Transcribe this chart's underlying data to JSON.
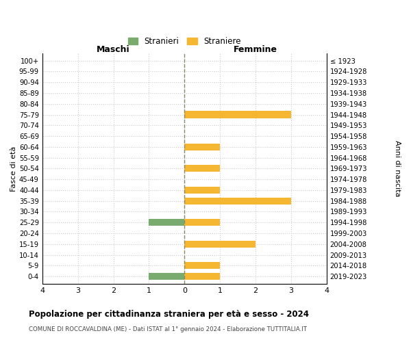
{
  "age_groups": [
    "100+",
    "95-99",
    "90-94",
    "85-89",
    "80-84",
    "75-79",
    "70-74",
    "65-69",
    "60-64",
    "55-59",
    "50-54",
    "45-49",
    "40-44",
    "35-39",
    "30-34",
    "25-29",
    "20-24",
    "15-19",
    "10-14",
    "5-9",
    "0-4"
  ],
  "birth_years": [
    "≤ 1923",
    "1924-1928",
    "1929-1933",
    "1934-1938",
    "1939-1943",
    "1944-1948",
    "1949-1953",
    "1954-1958",
    "1959-1963",
    "1964-1968",
    "1969-1973",
    "1974-1978",
    "1979-1983",
    "1984-1988",
    "1989-1993",
    "1994-1998",
    "1999-2003",
    "2004-2008",
    "2009-2013",
    "2014-2018",
    "2019-2023"
  ],
  "males": [
    0,
    0,
    0,
    0,
    0,
    0,
    0,
    0,
    0,
    0,
    0,
    0,
    0,
    0,
    0,
    1,
    0,
    0,
    0,
    0,
    1
  ],
  "females": [
    0,
    0,
    0,
    0,
    0,
    3,
    0,
    0,
    1,
    0,
    1,
    0,
    1,
    3,
    0,
    1,
    0,
    2,
    0,
    1,
    1
  ],
  "male_color": "#7aab6e",
  "female_color": "#f5b731",
  "background_color": "#ffffff",
  "grid_color": "#cccccc",
  "zero_line_color": "#888866",
  "title": "Popolazione per cittadinanza straniera per età e sesso - 2024",
  "subtitle": "COMUNE DI ROCCAVALDINA (ME) - Dati ISTAT al 1° gennaio 2024 - Elaborazione TUTTITALIA.IT",
  "ylabel_left": "Fasce di età",
  "ylabel_right": "Anni di nascita",
  "xlabel_min": -4,
  "xlabel_max": 4,
  "xticks": [
    -4,
    -3,
    -2,
    -1,
    0,
    1,
    2,
    3,
    4
  ],
  "xtick_labels": [
    "4",
    "3",
    "2",
    "1",
    "0",
    "1",
    "2",
    "3",
    "4"
  ],
  "col_header_left": "Maschi",
  "col_header_right": "Femmine",
  "legend_stranieri": "Stranieri",
  "legend_straniere": "Straniere"
}
